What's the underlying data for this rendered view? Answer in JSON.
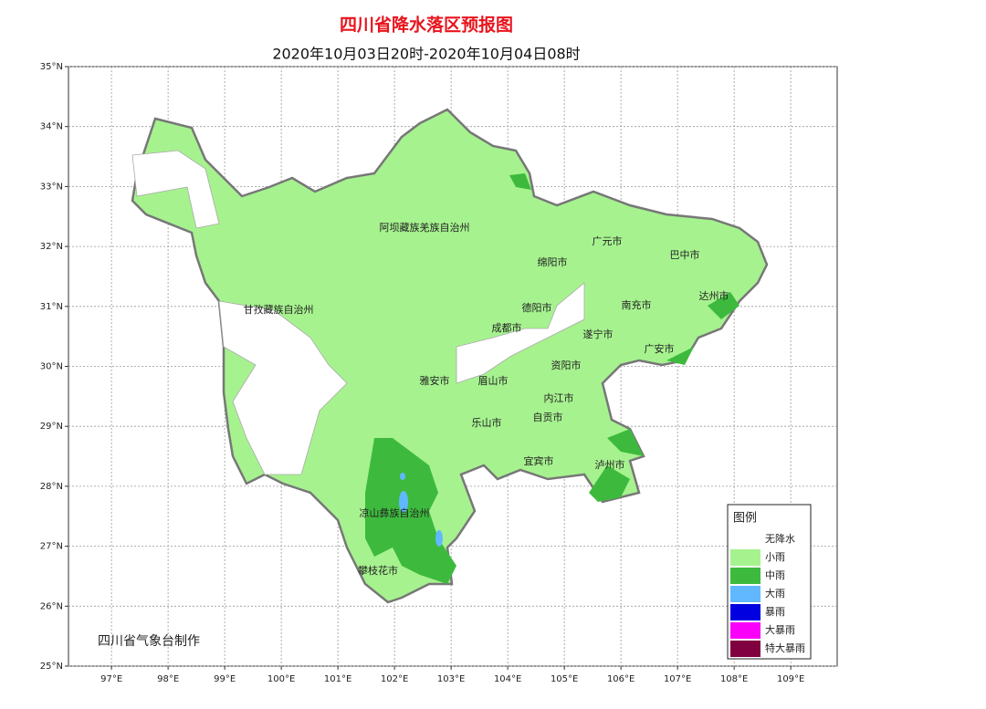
{
  "header": {
    "title": "四川省降水落区预报图",
    "subtitle": "2020年10月03日20时-2020年10月04日08时"
  },
  "axes": {
    "xlim": [
      96.24,
      109.82
    ],
    "ylim": [
      25,
      35
    ],
    "xticks": [
      {
        "value": 97,
        "label": "97°E"
      },
      {
        "value": 98,
        "label": "98°E"
      },
      {
        "value": 99,
        "label": "99°E"
      },
      {
        "value": 100,
        "label": "100°E"
      },
      {
        "value": 101,
        "label": "101°E"
      },
      {
        "value": 102,
        "label": "102°E"
      },
      {
        "value": 103,
        "label": "103°E"
      },
      {
        "value": 104,
        "label": "104°E"
      },
      {
        "value": 105,
        "label": "105°E"
      },
      {
        "value": 106,
        "label": "106°E"
      },
      {
        "value": 107,
        "label": "107°E"
      },
      {
        "value": 108,
        "label": "108°E"
      },
      {
        "value": 109,
        "label": "109°E"
      }
    ],
    "yticks": [
      {
        "value": 25,
        "label": "25°N"
      },
      {
        "value": 26,
        "label": "26°N"
      },
      {
        "value": 27,
        "label": "27°N"
      },
      {
        "value": 28,
        "label": "28°N"
      },
      {
        "value": 29,
        "label": "29°N"
      },
      {
        "value": 30,
        "label": "30°N"
      },
      {
        "value": 31,
        "label": "31°N"
      },
      {
        "value": 32,
        "label": "32°N"
      },
      {
        "value": 33,
        "label": "33°N"
      },
      {
        "value": 34,
        "label": "34°N"
      },
      {
        "value": 35,
        "label": "35°N"
      }
    ]
  },
  "places": [
    "阿坝藏族羌族自治州",
    "甘孜藏族自治州",
    "广元市",
    "巴中市",
    "绵阳市",
    "达州市",
    "德阳市",
    "南充市",
    "成都市",
    "遂宁市",
    "广安市",
    "资阳市",
    "雅安市",
    "眉山市",
    "内江市",
    "自贡市",
    "乐山市",
    "宜宾市",
    "泸州市",
    "凉山彝族自治州",
    "攀枝花市"
  ],
  "legend": {
    "title": "图例",
    "items": [
      {
        "label": "无降水",
        "color": "#ffffff"
      },
      {
        "label": "小雨",
        "color": "#a6f28f"
      },
      {
        "label": "中雨",
        "color": "#3dba3d"
      },
      {
        "label": "大雨",
        "color": "#61b8ff"
      },
      {
        "label": "暴雨",
        "color": "#0000e1"
      },
      {
        "label": "大暴雨",
        "color": "#fa00fa"
      },
      {
        "label": "特大暴雨",
        "color": "#800040"
      }
    ]
  },
  "credit": "四川省气象台制作"
}
